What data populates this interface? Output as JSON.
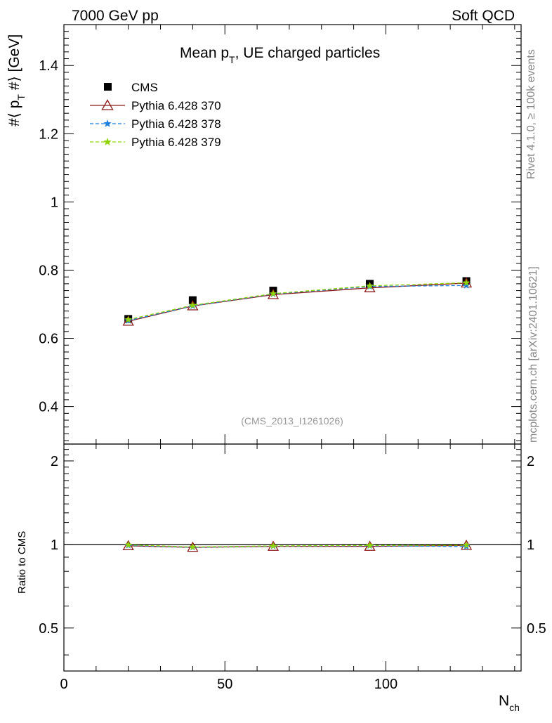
{
  "header": {
    "left": "7000 GeV pp",
    "right": "Soft QCD"
  },
  "side_labels": {
    "rivet": "Rivet 4.1.0, ≥ 100k events",
    "mcplots": "mcplots.cern.ch [arXiv:2401.10621]"
  },
  "chart_data": {
    "type": "scatter",
    "title": {
      "main": "Mean p",
      "sub": "T",
      "rest": ", UE charged particles"
    },
    "analysis_id": "(CMS_2013_I1261026)",
    "ylabel": {
      "pre": "#⟨ p",
      "sub": "T",
      "post": " #⟩ [GeV]"
    },
    "xlabel": {
      "main": "N",
      "sub": "ch"
    },
    "ratio_ylabel": "Ratio to CMS",
    "xlim": [
      0,
      142
    ],
    "ylim": [
      0.29,
      1.52
    ],
    "ratio_ylim": [
      0.35,
      2.3
    ],
    "x_ticks": [
      0,
      50,
      100
    ],
    "x_tick_labels": [
      "0",
      "50",
      "100"
    ],
    "y_ticks": [
      0.4,
      0.6,
      0.8,
      1,
      1.2,
      1.4
    ],
    "y_tick_labels": [
      "0.4",
      "0.6",
      "0.8",
      "1",
      "1.2",
      "1.4"
    ],
    "ratio_ticks": [
      0.5,
      1,
      2
    ],
    "ratio_tick_labels": [
      "0.5",
      "1",
      "2"
    ],
    "x": [
      20,
      40,
      65,
      95,
      125
    ],
    "series": [
      {
        "name": "CMS",
        "style": "data",
        "color": "#000000",
        "marker": "square",
        "values": [
          0.657,
          0.712,
          0.74,
          0.76,
          0.768
        ],
        "ratio": [
          1,
          1,
          1,
          1,
          1
        ]
      },
      {
        "name": "Pythia 6.428 370",
        "style": "solid",
        "color": "#8b1a1a",
        "marker": "triangle",
        "values": [
          0.65,
          0.695,
          0.728,
          0.748,
          0.762
        ],
        "ratio": [
          0.989,
          0.976,
          0.984,
          0.984,
          0.992
        ]
      },
      {
        "name": "Pythia 6.428 378",
        "style": "dashed",
        "color": "#1e7fdc",
        "marker": "star",
        "values": [
          0.652,
          0.695,
          0.73,
          0.752,
          0.755
        ],
        "ratio": [
          0.992,
          0.976,
          0.986,
          0.989,
          0.983
        ]
      },
      {
        "name": "Pythia 6.428 379",
        "style": "dashed",
        "color": "#8fd400",
        "marker": "star",
        "values": [
          0.655,
          0.697,
          0.731,
          0.754,
          0.763
        ],
        "ratio": [
          0.997,
          0.979,
          0.988,
          0.992,
          0.994
        ]
      }
    ],
    "legend_position": "top-left"
  }
}
